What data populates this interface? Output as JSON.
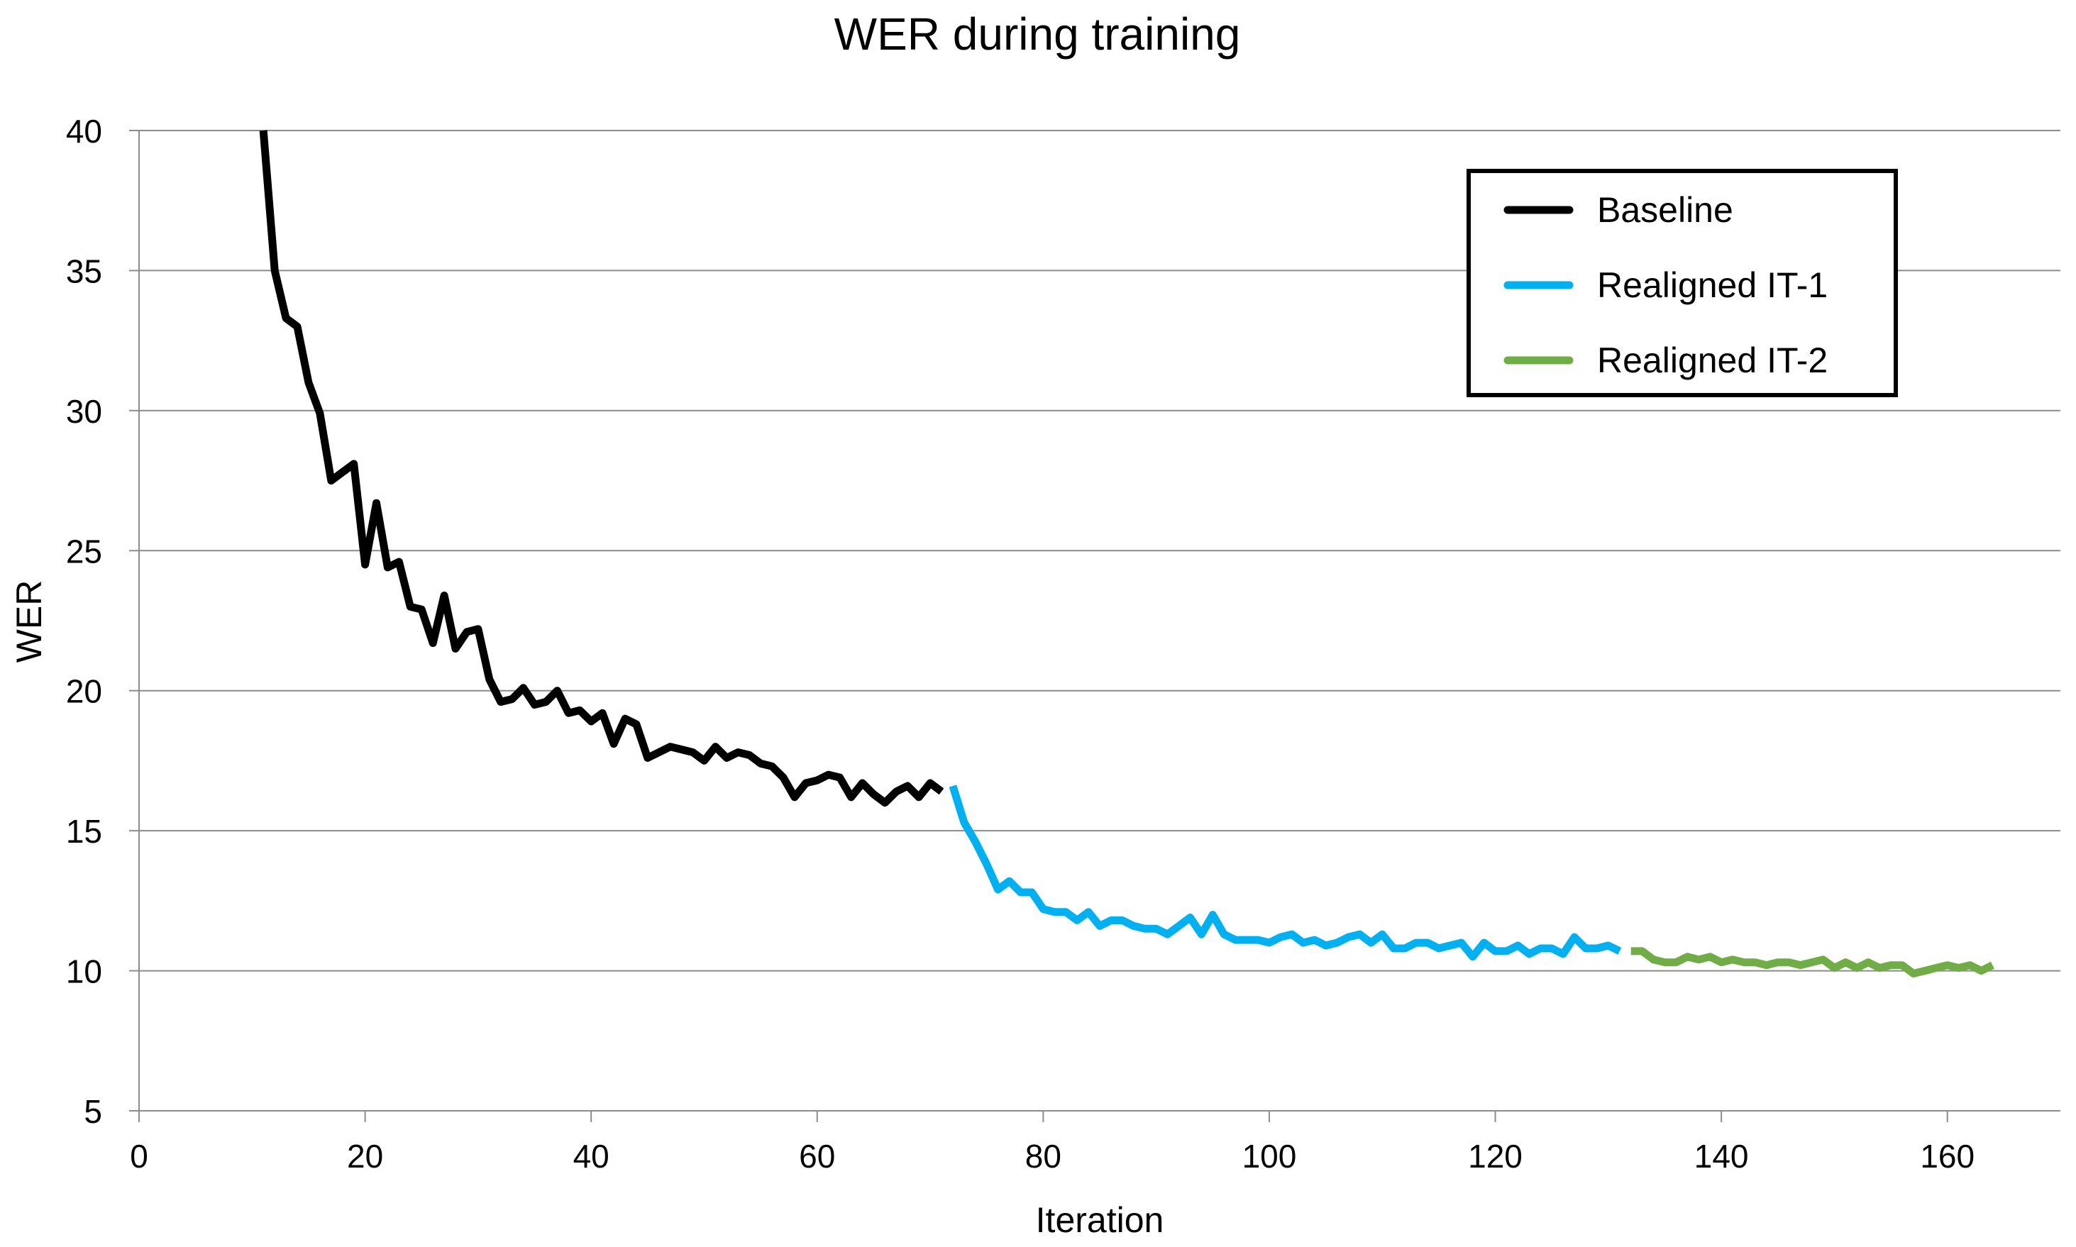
{
  "chart_data": {
    "type": "line",
    "title": "WER during training",
    "xlabel": "Iteration",
    "ylabel": "WER",
    "xlim": [
      0,
      170
    ],
    "ylim": [
      5,
      40
    ],
    "xticks": [
      0,
      20,
      40,
      60,
      80,
      100,
      120,
      140,
      160
    ],
    "yticks": [
      5,
      10,
      15,
      20,
      25,
      30,
      35,
      40
    ],
    "grid": "horizontal",
    "legend_position": "top-right",
    "series": [
      {
        "name": "Baseline",
        "color": "#000000",
        "x": [
          11,
          12,
          13,
          14,
          15,
          16,
          17,
          18,
          19,
          20,
          21,
          22,
          23,
          24,
          25,
          26,
          27,
          28,
          29,
          30,
          31,
          32,
          33,
          34,
          35,
          36,
          37,
          38,
          39,
          40,
          41,
          42,
          43,
          44,
          45,
          46,
          47,
          48,
          49,
          50,
          51,
          52,
          53,
          54,
          55,
          56,
          57,
          58,
          59,
          60,
          61,
          62,
          63,
          64,
          65,
          66,
          67,
          68,
          69,
          70,
          71,
          72
        ],
        "y": [
          40,
          35,
          33.3,
          33,
          31,
          29.9,
          27.5,
          27.8,
          28.1,
          24.5,
          26.7,
          24.4,
          24.6,
          23,
          22.9,
          21.7,
          23.4,
          21.5,
          22.1,
          22.2,
          20.4,
          19.6,
          19.7,
          20.1,
          19.5,
          19.6,
          20,
          19.2,
          19.3,
          18.9,
          19.2,
          18.1,
          19,
          18.8,
          17.6,
          17.8,
          18,
          17.9,
          17.8,
          17.5,
          18,
          17.6,
          17.8,
          17.7,
          17.4,
          17.3,
          16.9,
          16.2,
          16.7,
          16.8,
          17,
          16.9,
          16.2,
          16.7,
          16.3,
          16,
          16.4,
          16.6,
          16.2,
          16.7,
          16.4,
          null
        ]
      },
      {
        "name": "Realigned IT-1",
        "color": "#00B0F0",
        "x": [
          72,
          73,
          74,
          75,
          76,
          77,
          78,
          79,
          80,
          81,
          82,
          83,
          84,
          85,
          86,
          87,
          88,
          89,
          90,
          91,
          92,
          93,
          94,
          95,
          96,
          97,
          98,
          99,
          100,
          101,
          102,
          103,
          104,
          105,
          106,
          107,
          108,
          109,
          110,
          111,
          112,
          113,
          114,
          115,
          116,
          117,
          118,
          119,
          120,
          121,
          122,
          123,
          124,
          125,
          126,
          127,
          128,
          129,
          130,
          131
        ],
        "y": [
          16.6,
          15.3,
          14.6,
          13.8,
          12.9,
          13.2,
          12.8,
          12.8,
          12.2,
          12.1,
          12.1,
          11.8,
          12.1,
          11.6,
          11.8,
          11.8,
          11.6,
          11.5,
          11.5,
          11.3,
          11.6,
          11.9,
          11.3,
          12,
          11.3,
          11.1,
          11.1,
          11.1,
          11,
          11.2,
          11.3,
          11,
          11.1,
          10.9,
          11,
          11.2,
          11.3,
          11,
          11.3,
          10.8,
          10.8,
          11,
          11,
          10.8,
          10.9,
          11,
          10.5,
          11,
          10.7,
          10.7,
          10.9,
          10.6,
          10.8,
          10.8,
          10.6,
          11.2,
          10.8,
          10.8,
          10.9,
          10.7
        ]
      },
      {
        "name": "Realigned IT-2",
        "color": "#70AD47",
        "x": [
          132,
          133,
          134,
          135,
          136,
          137,
          138,
          139,
          140,
          141,
          142,
          143,
          144,
          145,
          146,
          147,
          148,
          149,
          150,
          151,
          152,
          153,
          154,
          155,
          156,
          157,
          158,
          159,
          160,
          161,
          162,
          163,
          164
        ],
        "y": [
          10.7,
          10.7,
          10.4,
          10.3,
          10.3,
          10.5,
          10.4,
          10.5,
          10.3,
          10.4,
          10.3,
          10.3,
          10.2,
          10.3,
          10.3,
          10.2,
          10.3,
          10.4,
          10.1,
          10.3,
          10.1,
          10.3,
          10.1,
          10.2,
          10.2,
          9.9,
          10,
          10.1,
          10.2,
          10.1,
          10.2,
          10,
          10.2
        ]
      }
    ]
  }
}
